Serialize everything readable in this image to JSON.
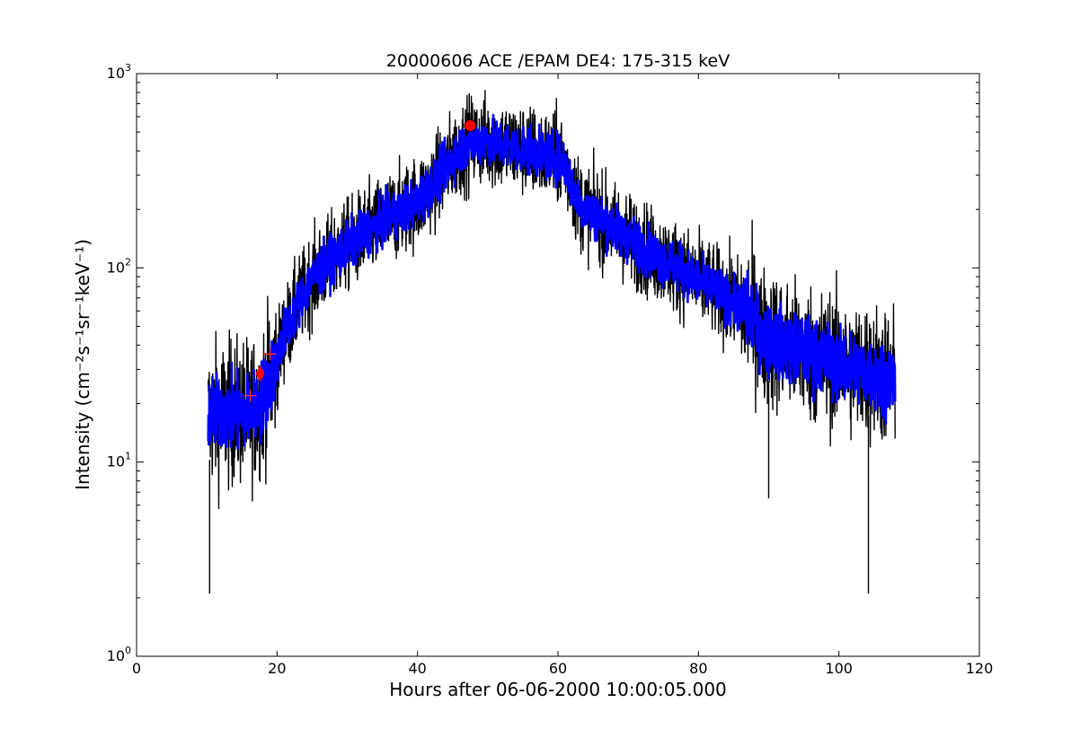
{
  "chart_data": {
    "type": "line",
    "title": "20000606 ACE /EPAM DE4: 175-315 keV",
    "xlabel": "Hours after 06-06-2000 10:00:05.000",
    "ylabel": "Intensity (cm⁻²s⁻¹sr⁻¹keV⁻¹)",
    "xlim": [
      0,
      120
    ],
    "ylim": [
      1,
      1000
    ],
    "yscale": "log",
    "grid": false,
    "x_ticks": [
      "0",
      "20",
      "40",
      "60",
      "80",
      "100",
      "120"
    ],
    "y_ticks": [
      {
        "base": "10",
        "exp": "0",
        "value": 1
      },
      {
        "base": "10",
        "exp": "1",
        "value": 10
      },
      {
        "base": "10",
        "exp": "2",
        "value": 100
      },
      {
        "base": "10",
        "exp": "3",
        "value": 1000
      }
    ],
    "series": [
      {
        "role": "raw-data-noisy",
        "color": "#000000",
        "x": [
          10.2,
          12,
          14,
          16,
          17.5,
          18.5,
          19.5,
          21,
          23,
          25,
          27,
          30,
          33,
          36,
          40,
          43,
          45,
          47.5,
          50,
          53,
          56,
          58,
          60,
          61,
          62,
          63,
          65,
          68,
          71,
          74,
          77,
          80,
          83,
          86,
          88,
          89,
          92,
          95,
          98,
          101,
          104,
          106,
          108
        ],
        "y": [
          17,
          18,
          18,
          18,
          20,
          24,
          29,
          45,
          65,
          88,
          105,
          130,
          155,
          180,
          220,
          290,
          370,
          450,
          450,
          420,
          400,
          380,
          370,
          340,
          270,
          215,
          190,
          160,
          135,
          115,
          100,
          86,
          74,
          63,
          55,
          45,
          40,
          37,
          34,
          31,
          29,
          28,
          27
        ],
        "noise_fraction": 0.42
      },
      {
        "role": "smoothed-band",
        "color": "#0000ff",
        "x": [
          10.2,
          12,
          14,
          16,
          17.5,
          18.5,
          19.5,
          21,
          23,
          25,
          27,
          30,
          33,
          36,
          40,
          43,
          45,
          47.5,
          50,
          53,
          56,
          58,
          60,
          61,
          62,
          63,
          65,
          68,
          71,
          74,
          77,
          80,
          83,
          86,
          88,
          89,
          92,
          95,
          98,
          101,
          104,
          106,
          108
        ],
        "y": [
          17,
          18,
          18,
          18,
          20,
          24,
          29,
          45,
          65,
          88,
          105,
          130,
          155,
          180,
          220,
          290,
          370,
          450,
          450,
          420,
          400,
          380,
          370,
          340,
          270,
          215,
          190,
          160,
          135,
          115,
          100,
          86,
          74,
          63,
          55,
          45,
          40,
          37,
          34,
          31,
          29,
          28,
          27
        ],
        "noise_fraction": 0.22
      }
    ],
    "dips": [
      {
        "x": 10.4,
        "y": 2.1
      },
      {
        "x": 104.2,
        "y": 2.1
      },
      {
        "x": 90.0,
        "y": 6.5
      }
    ],
    "markers": [
      {
        "type": "circle",
        "x": 47.5,
        "y": 540,
        "color": "#ff0000"
      },
      {
        "type": "diamond",
        "x": 17.6,
        "y": 28.5,
        "color": "#ff0000"
      },
      {
        "type": "plus",
        "x": 16.2,
        "y": 22,
        "color": "#ff3333"
      },
      {
        "type": "plus",
        "x": 19.0,
        "y": 36,
        "color": "#ff3333"
      }
    ]
  }
}
